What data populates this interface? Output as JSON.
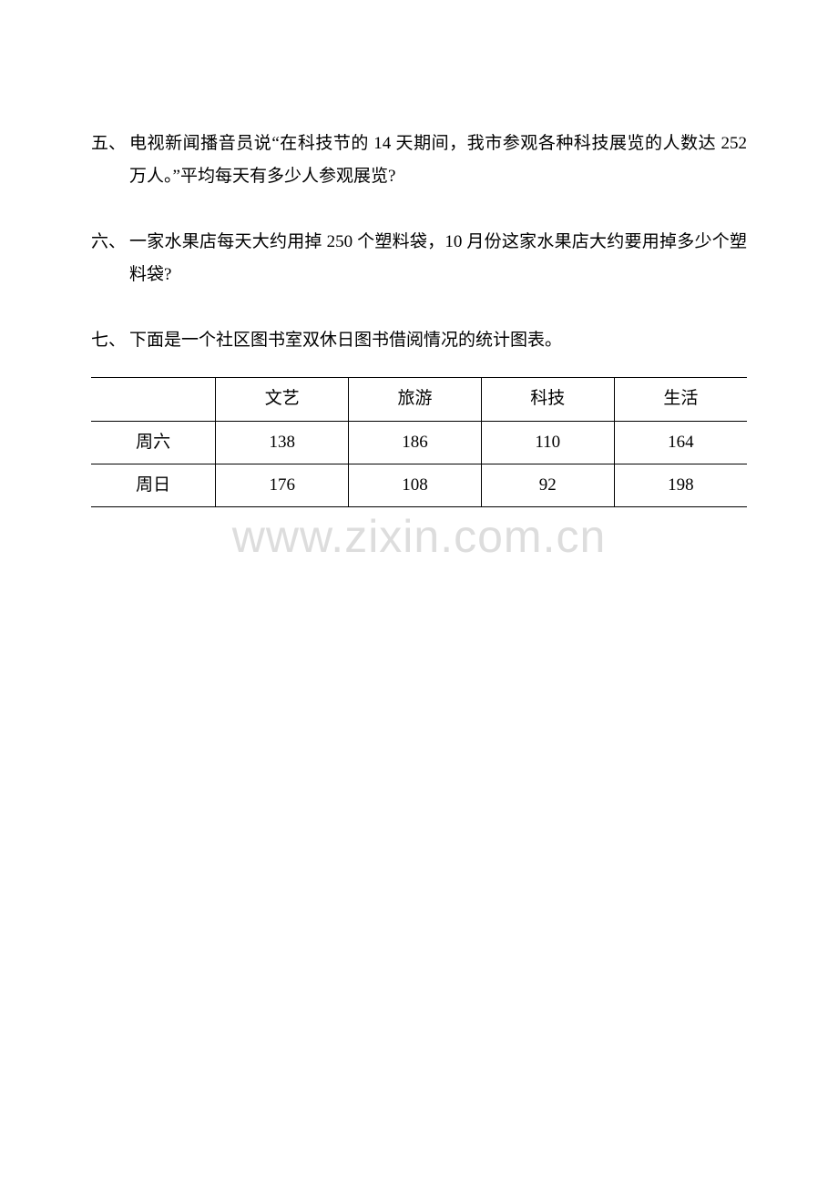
{
  "questions": {
    "q5": {
      "number": "五、",
      "text": "电视新闻播音员说“在科技节的 14 天期间，我市参观各种科技展览的人数达 252 万人。”平均每天有多少人参观展览?"
    },
    "q6": {
      "number": "六、",
      "text": "一家水果店每天大约用掉 250 个塑料袋，10 月份这家水果店大约要用掉多少个塑料袋?"
    },
    "q7": {
      "number": "七、",
      "text": "下面是一个社区图书室双休日图书借阅情况的统计图表。"
    }
  },
  "table": {
    "type": "table",
    "columns": [
      "",
      "文艺",
      "旅游",
      "科技",
      "生活"
    ],
    "rows": [
      [
        "周六",
        "138",
        "186",
        "110",
        "164"
      ],
      [
        "周日",
        "176",
        "108",
        "92",
        "198"
      ]
    ],
    "border_color": "#000000",
    "background_color": "#ffffff",
    "font_size": 19,
    "col_widths_percent": [
      19,
      20.25,
      20.25,
      20.25,
      20.25
    ],
    "cell_alignment": "center"
  },
  "watermark": {
    "text": "www.zixin.com.cn",
    "color": "#dddddd",
    "font_size": 50
  }
}
